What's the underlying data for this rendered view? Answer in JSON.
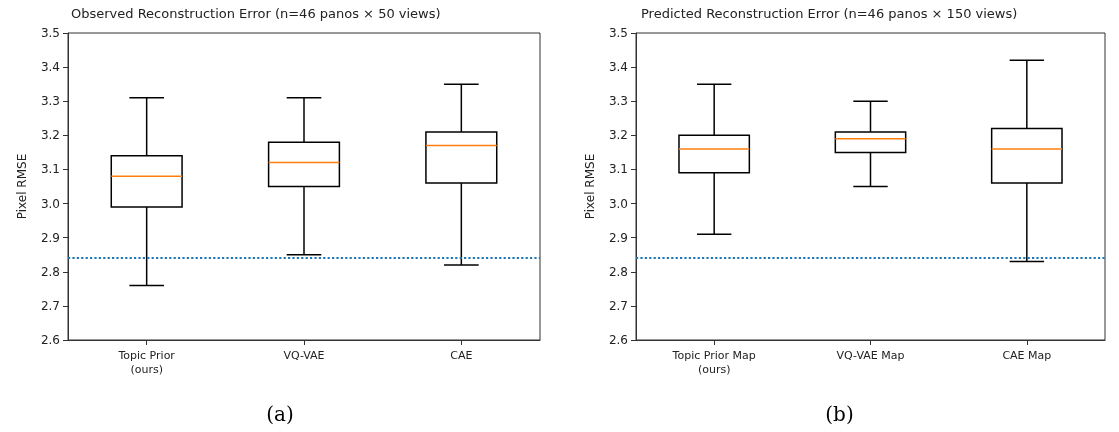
{
  "chart_data": [
    {
      "type": "box",
      "title": "Observed Reconstruction Error (n=46 panos × 50 views)",
      "ylabel": "Pixel RMSE",
      "categories": [
        "Topic Prior\n(ours)",
        "VQ-VAE",
        "CAE"
      ],
      "series": [
        {
          "color": "#000000",
          "boxes": [
            {
              "low": 2.76,
              "q1": 2.99,
              "median": 3.08,
              "q3": 3.14,
              "high": 3.31
            },
            {
              "low": 2.85,
              "q1": 3.05,
              "median": 3.12,
              "q3": 3.18,
              "high": 3.31
            },
            {
              "low": 2.82,
              "q1": 3.06,
              "median": 3.17,
              "q3": 3.21,
              "high": 3.35
            }
          ]
        }
      ],
      "ylim": [
        2.6,
        3.5
      ],
      "yticks": [
        2.6,
        2.7,
        2.8,
        2.9,
        {
          "value": 3,
          "label": "3.0"
        },
        3.1,
        3.2,
        3.3,
        3.4,
        3.5
      ],
      "grid": false,
      "ref_lines": [
        {
          "axis": "y",
          "value": 2.84,
          "color": "#1f77b4",
          "line_style": "dotted"
        }
      ],
      "annotations": [
        "(a)"
      ]
    },
    {
      "type": "box",
      "title": "Predicted Reconstruction Error (n=46 panos × 150 views)",
      "ylabel": "Pixel RMSE",
      "categories": [
        "Topic Prior Map\n(ours)",
        "VQ-VAE Map",
        "CAE Map"
      ],
      "series": [
        {
          "color": "#000000",
          "boxes": [
            {
              "low": 2.91,
              "q1": 3.09,
              "median": 3.16,
              "q3": 3.2,
              "high": 3.35
            },
            {
              "low": 3.05,
              "q1": 3.15,
              "median": 3.19,
              "q3": 3.21,
              "high": 3.3
            },
            {
              "low": 2.83,
              "q1": 3.06,
              "median": 3.16,
              "q3": 3.22,
              "high": 3.42
            }
          ]
        }
      ],
      "ylim": [
        2.6,
        3.5
      ],
      "yticks": [
        2.6,
        2.7,
        2.8,
        2.9,
        {
          "value": 3,
          "label": "3.0"
        },
        3.1,
        3.2,
        3.3,
        3.4,
        3.5
      ],
      "grid": false,
      "ref_lines": [
        {
          "axis": "y",
          "value": 2.84,
          "color": "#1f77b4",
          "line_style": "dotted"
        }
      ],
      "annotations": [
        "(b)"
      ]
    }
  ]
}
